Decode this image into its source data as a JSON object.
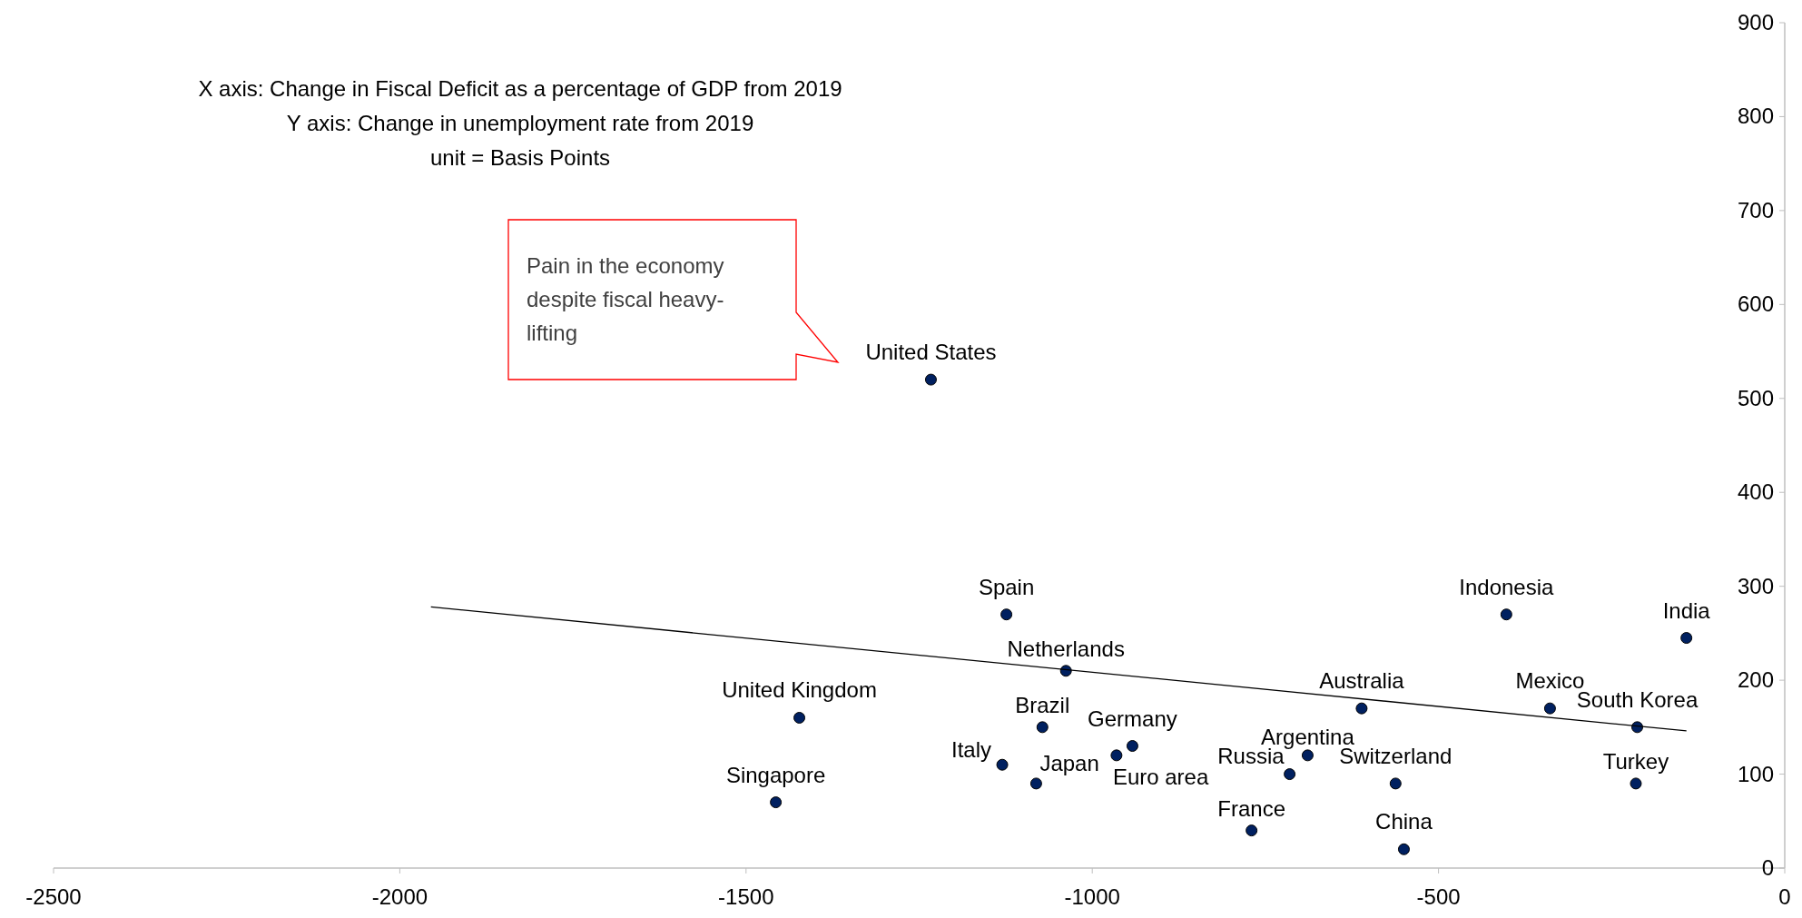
{
  "chart_data": {
    "type": "scatter",
    "annotations": [
      "X axis: Change in Fiscal Deficit as a percentage of GDP from 2019",
      "Y axis: Change in unemployment rate from 2019",
      "unit = Basis Points",
      "Pain in the economy despite fiscal heavy-lifting"
    ],
    "xlim": [
      -2500,
      0
    ],
    "xticks": [
      -2500,
      -2000,
      -1500,
      -1000,
      -500,
      0
    ],
    "ylim": [
      0,
      900
    ],
    "yticks": [
      0,
      100,
      200,
      300,
      400,
      500,
      600,
      700,
      800,
      900
    ],
    "grid": false,
    "marker": "circle",
    "series": [
      {
        "name": "United States",
        "color": "#002060",
        "x": [
          -1233
        ],
        "values": [
          520
        ]
      },
      {
        "name": "Spain",
        "color": "#002060",
        "x": [
          -1124
        ],
        "values": [
          270
        ]
      },
      {
        "name": "Netherlands",
        "color": "#002060",
        "x": [
          -1038
        ],
        "values": [
          210
        ]
      },
      {
        "name": "United Kingdom",
        "color": "#002060",
        "x": [
          -1423
        ],
        "values": [
          160
        ]
      },
      {
        "name": "Singapore",
        "color": "#002060",
        "x": [
          -1457
        ],
        "values": [
          70
        ]
      },
      {
        "name": "Brazil",
        "color": "#002060",
        "x": [
          -1072
        ],
        "values": [
          150
        ]
      },
      {
        "name": "Italy",
        "color": "#002060",
        "x": [
          -1130
        ],
        "values": [
          110
        ]
      },
      {
        "name": "Japan",
        "color": "#002060",
        "x": [
          -1081
        ],
        "values": [
          90
        ]
      },
      {
        "name": "Germany",
        "color": "#002060",
        "x": [
          -942
        ],
        "values": [
          130
        ]
      },
      {
        "name": "Euro area",
        "color": "#002060",
        "x": [
          -965
        ],
        "values": [
          120
        ]
      },
      {
        "name": "France",
        "color": "#002060",
        "x": [
          -770
        ],
        "values": [
          40
        ]
      },
      {
        "name": "Russia",
        "color": "#002060",
        "x": [
          -715
        ],
        "values": [
          100
        ]
      },
      {
        "name": "Argentina",
        "color": "#002060",
        "x": [
          -689
        ],
        "values": [
          120
        ]
      },
      {
        "name": "Australia",
        "color": "#002060",
        "x": [
          -611
        ],
        "values": [
          170
        ]
      },
      {
        "name": "Switzerland",
        "color": "#002060",
        "x": [
          -562
        ],
        "values": [
          90
        ]
      },
      {
        "name": "China",
        "color": "#002060",
        "x": [
          -550
        ],
        "values": [
          20
        ]
      },
      {
        "name": "Indonesia",
        "color": "#002060",
        "x": [
          -402
        ],
        "values": [
          270
        ]
      },
      {
        "name": "Mexico",
        "color": "#002060",
        "x": [
          -339
        ],
        "values": [
          170
        ]
      },
      {
        "name": "South Korea",
        "color": "#002060",
        "x": [
          -213
        ],
        "values": [
          150
        ]
      },
      {
        "name": "Turkey",
        "color": "#002060",
        "x": [
          -215
        ],
        "values": [
          90
        ]
      },
      {
        "name": "India",
        "color": "#002060",
        "x": [
          -142
        ],
        "values": [
          245
        ]
      },
      {
        "type": "line",
        "marker": "none",
        "color": "#000000",
        "x": [
          -1955,
          -142
        ],
        "values": [
          278,
          146
        ]
      }
    ]
  }
}
